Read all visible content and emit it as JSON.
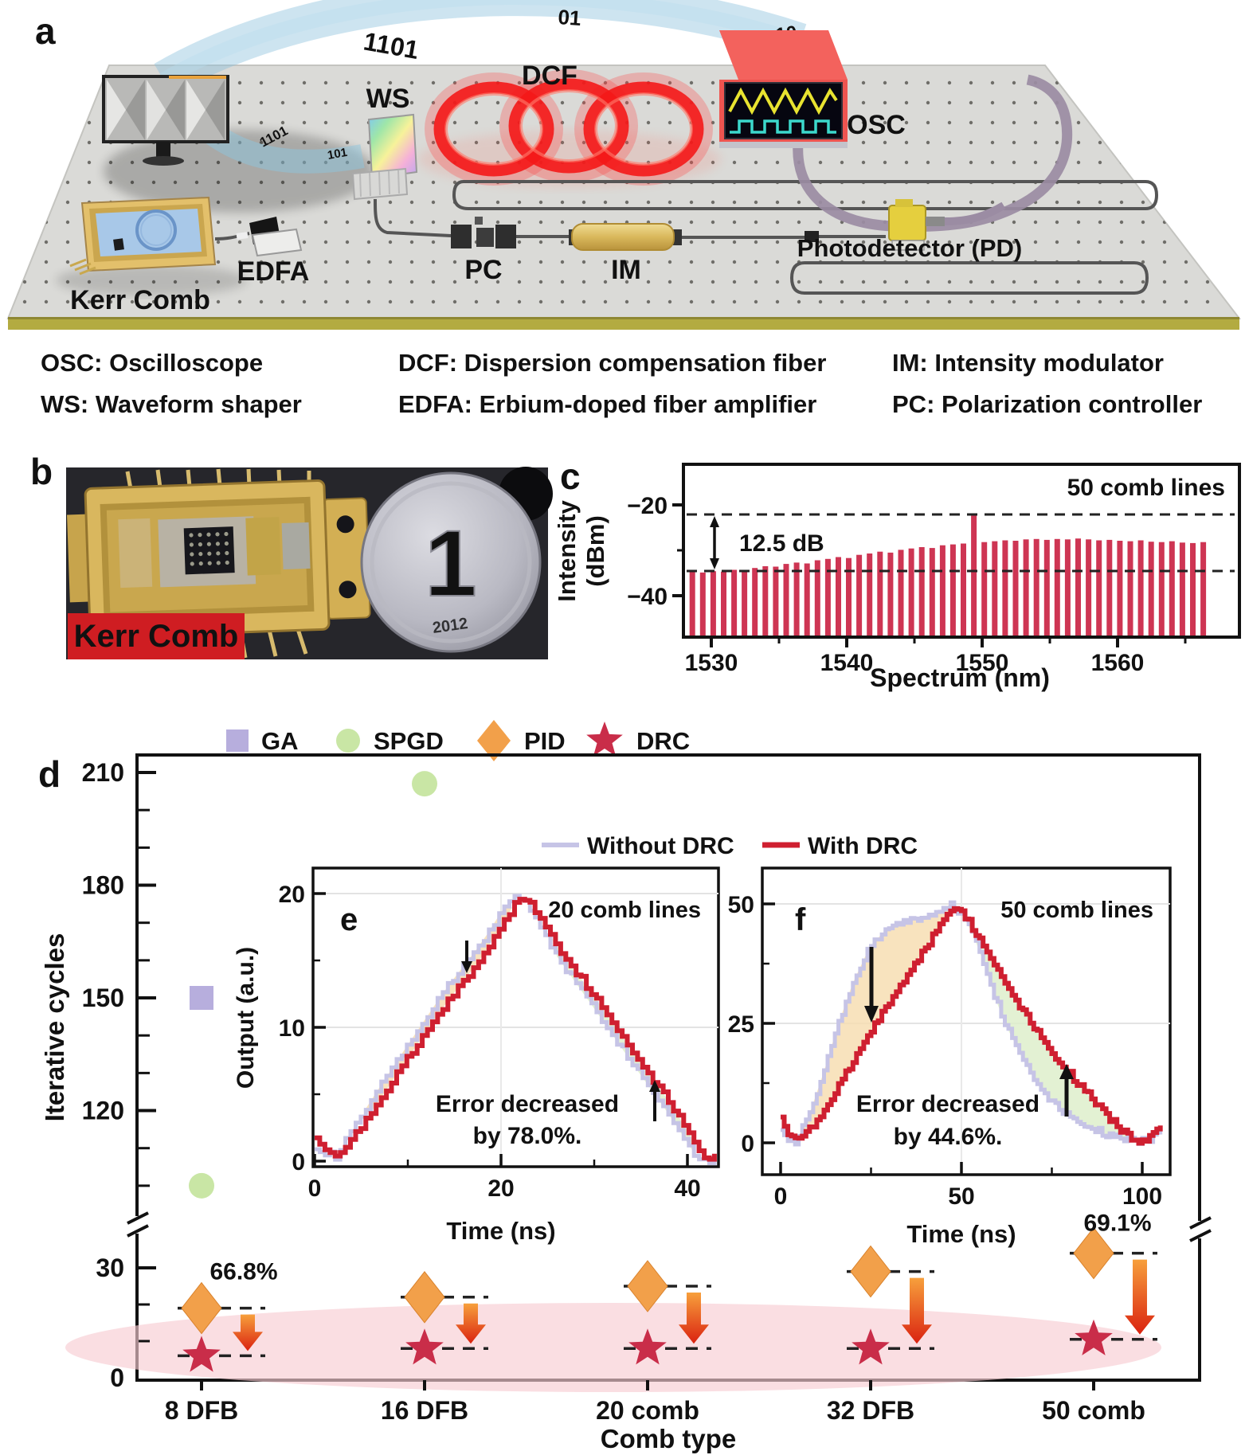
{
  "figure": {
    "letters": {
      "a": "a",
      "b": "b",
      "c": "c",
      "d": "d",
      "e": "e",
      "f": "f"
    }
  },
  "panel_a": {
    "component_labels": {
      "ws": "WS",
      "dcf": "DCF",
      "osc": "OSC",
      "kerr_comb": "Kerr Comb",
      "edfa": "EDFA",
      "pc": "PC",
      "im": "IM",
      "pd": "Photodetector (PD)"
    },
    "binary_digits": [
      "1101",
      "01",
      "10",
      "1101",
      "101"
    ],
    "colors": {
      "dcf_label": "#e03a4e",
      "board": "#dadad7",
      "osc_box": "#f3625d",
      "ring_red": "#f41818"
    }
  },
  "abbreviations": [
    {
      "label": "OSC: Oscilloscope",
      "color": "#111111"
    },
    {
      "label": "DCF: Dispersion compensation fiber",
      "color": "#d43a52"
    },
    {
      "label": "IM: Intensity modulator",
      "color": "#111111"
    },
    {
      "label": "WS: Waveform shaper",
      "color": "#111111"
    },
    {
      "label": "EDFA: Erbium-doped fiber amplifier",
      "color": "#111111"
    },
    {
      "label": "PC: Polarization controller",
      "color": "#111111"
    }
  ],
  "panel_b": {
    "chip_label": "Kerr Comb",
    "coin_numeral": "1",
    "coin_year": "2012"
  },
  "legend_d": [
    {
      "label": "GA",
      "marker": "square",
      "color": "#b7aedd"
    },
    {
      "label": "SPGD",
      "marker": "circle",
      "color": "#c9e6a5"
    },
    {
      "label": "PID",
      "marker": "diamond",
      "color": "#f2a04a"
    },
    {
      "label": "DRC",
      "marker": "star",
      "color": "#c92d49"
    }
  ],
  "inset_legend": {
    "without": "Without DRC",
    "with": "With DRC",
    "without_color": "#c6c4e6",
    "with_color": "#cf1f30"
  },
  "chart_data": [
    {
      "id": "c",
      "type": "bar",
      "xlabel": "Spectrum (nm)",
      "ylabel_line1": "Intensity",
      "ylabel_line2": "(dBm)",
      "annotation": "50 comb lines",
      "gap_label": "12.5 dB",
      "x_start_nm": 1528.6,
      "x_step_nm": 0.77,
      "xticks": [
        1530,
        1540,
        1550,
        1560
      ],
      "xminor": [
        1535,
        1545,
        1555,
        1565
      ],
      "yticks": [
        -20,
        -40
      ],
      "yminor": [
        -30
      ],
      "dashed_levels": [
        -22.3,
        -34.8
      ],
      "bar_color": "#ce3553",
      "values_dbm": [
        -34.8,
        -34.9,
        -34.6,
        -34.7,
        -34.3,
        -34.4,
        -33.9,
        -33.5,
        -33.6,
        -33.0,
        -32.7,
        -32.9,
        -32.2,
        -31.9,
        -31.5,
        -31.7,
        -31.0,
        -30.7,
        -30.3,
        -30.5,
        -29.9,
        -29.6,
        -29.3,
        -29.5,
        -28.9,
        -28.7,
        -28.5,
        -22.3,
        -28.2,
        -28.0,
        -27.8,
        -27.9,
        -27.6,
        -27.5,
        -27.7,
        -27.5,
        -27.6,
        -27.4,
        -27.6,
        -27.8,
        -27.7,
        -27.9,
        -28.0,
        -27.8,
        -28.1,
        -28.2,
        -28.0,
        -28.3,
        -28.4,
        -28.2
      ]
    },
    {
      "id": "d",
      "type": "scatter",
      "ylabel": "Iterative cycles",
      "xlabel": "Comb type",
      "categories": [
        "8 DFB",
        "16 DFB",
        "20 comb",
        "32 DFB",
        "50 comb"
      ],
      "upper_axis_ticks": [
        210,
        180,
        150,
        120
      ],
      "upper_axis_minor": [
        200,
        190,
        170,
        160,
        140,
        130,
        110,
        100
      ],
      "lower_axis_ticks": [
        30,
        0
      ],
      "lower_axis_minor": [
        20,
        10
      ],
      "upper_ylim": [
        95,
        215
      ],
      "lower_ylim": [
        0,
        38
      ],
      "upper_points": [
        {
          "series": "GA",
          "category": "8 DFB",
          "value": 150
        },
        {
          "series": "SPGD",
          "category": "8 DFB",
          "value": 100
        },
        {
          "series": "SPGD",
          "category": "16 DFB",
          "value": 207
        }
      ],
      "pid_values": [
        19,
        22,
        25,
        29,
        34
      ],
      "drc_values": [
        6,
        8,
        8,
        8,
        10.5
      ],
      "reduction_labels": [
        {
          "text": "66.8%",
          "category_index": 0
        },
        {
          "text": "69.1%",
          "category_index": 4
        }
      ],
      "marker_colors": {
        "GA": "#b7aedd",
        "SPGD": "#c9e6a5",
        "PID": "#f2a04a",
        "DRC": "#c92d49"
      }
    },
    {
      "id": "e",
      "type": "line",
      "title": "20 comb lines",
      "xlabel": "Time (ns)",
      "ylabel": "Output (a.u.)",
      "xticks": [
        0,
        20,
        40
      ],
      "xminor": [
        10,
        30
      ],
      "yticks": [
        20,
        10,
        0
      ],
      "yminor": [
        15,
        5
      ],
      "xlim": [
        0,
        43.3
      ],
      "ylim": [
        0,
        22
      ],
      "annotation_line1": "Error decreased",
      "annotation_line2": "by 78.0%.",
      "series": [
        {
          "name": "Without DRC",
          "color": "#c6c4e6",
          "points": [
            [
              0,
              1.0
            ],
            [
              2.2,
              0.3
            ],
            [
              6,
              4.5
            ],
            [
              10,
              8.7
            ],
            [
              14,
              12.8
            ],
            [
              18,
              16.4
            ],
            [
              21.2,
              19.9
            ],
            [
              22.6,
              19.4
            ],
            [
              26,
              15.3
            ],
            [
              30,
              11.4
            ],
            [
              34,
              7.4
            ],
            [
              38,
              3.5
            ],
            [
              41.2,
              0.1
            ],
            [
              42.6,
              0.0
            ],
            [
              43.3,
              0.85
            ]
          ]
        },
        {
          "name": "With DRC",
          "color": "#cf1f30",
          "points": [
            [
              0,
              1.6
            ],
            [
              2.5,
              0.15
            ],
            [
              6,
              3.6
            ],
            [
              10,
              7.7
            ],
            [
              14,
              11.7
            ],
            [
              18,
              15.3
            ],
            [
              21.6,
              19.4
            ],
            [
              22.4,
              19.9
            ],
            [
              26,
              16.1
            ],
            [
              30,
              12.3
            ],
            [
              34,
              8.3
            ],
            [
              38,
              4.5
            ],
            [
              41.6,
              0.5
            ],
            [
              42.6,
              0.15
            ],
            [
              43.3,
              1.3
            ]
          ]
        }
      ],
      "shade_rise": [
        5.5,
        21.2
      ],
      "shade_fall": [
        25.5,
        41.0
      ],
      "shade_rise_color": "#f6dcae",
      "shade_fall_color": "#dcedc8"
    },
    {
      "id": "f",
      "type": "line",
      "title": "50 comb lines",
      "xlabel": "Time (ns)",
      "ylabel": "",
      "xticks": [
        0,
        50,
        100
      ],
      "xminor": [
        25,
        75
      ],
      "yticks": [
        50,
        25,
        0
      ],
      "yminor": [
        37.5,
        12.5
      ],
      "xlim": [
        0,
        105
      ],
      "ylim": [
        0,
        55
      ],
      "annotation_line1": "Error decreased",
      "annotation_line2": "by 44.6%.",
      "series": [
        {
          "name": "Without DRC",
          "color": "#c6c4e6",
          "points": [
            [
              0,
              3
            ],
            [
              2,
              1
            ],
            [
              4,
              0.2
            ],
            [
              8,
              6
            ],
            [
              12,
              15
            ],
            [
              16,
              25
            ],
            [
              20,
              33.5
            ],
            [
              24,
              40
            ],
            [
              28,
              43.8
            ],
            [
              32,
              45.8
            ],
            [
              36,
              46.6
            ],
            [
              40,
              47.2
            ],
            [
              44,
              48.4
            ],
            [
              47,
              50
            ],
            [
              50,
              48
            ],
            [
              53,
              44
            ],
            [
              56,
              38
            ],
            [
              59,
              31
            ],
            [
              62,
              25
            ],
            [
              66,
              19
            ],
            [
              70,
              13.5
            ],
            [
              74,
              9.5
            ],
            [
              78,
              6.6
            ],
            [
              82,
              4.6
            ],
            [
              86,
              3.2
            ],
            [
              90,
              1.8
            ],
            [
              94,
              0.8
            ],
            [
              98,
              0.3
            ],
            [
              101,
              0.4
            ],
            [
              105,
              2.2
            ]
          ]
        },
        {
          "name": "With DRC",
          "color": "#cf1f30",
          "points": [
            [
              0,
              5
            ],
            [
              2,
              2
            ],
            [
              5,
              0.3
            ],
            [
              10,
              4.5
            ],
            [
              15,
              10.5
            ],
            [
              20,
              17
            ],
            [
              25,
              23.5
            ],
            [
              30,
              29.5
            ],
            [
              35,
              35
            ],
            [
              40,
              41
            ],
            [
              45,
              46.5
            ],
            [
              48,
              49.6
            ],
            [
              50,
              48.8
            ],
            [
              53,
              45
            ],
            [
              57,
              40
            ],
            [
              61,
              35
            ],
            [
              65,
              30
            ],
            [
              69,
              25.5
            ],
            [
              73,
              21
            ],
            [
              77,
              17
            ],
            [
              81,
              13.5
            ],
            [
              85,
              10
            ],
            [
              89,
              6.5
            ],
            [
              93,
              3.5
            ],
            [
              97,
              1
            ],
            [
              100,
              0.3
            ],
            [
              103,
              1.8
            ],
            [
              105,
              3.6
            ]
          ]
        }
      ],
      "shade_rise": [
        5.5,
        46.5
      ],
      "shade_fall": [
        51.5,
        97.5
      ],
      "shade_rise_color": "#f6dcae",
      "shade_fall_color": "#dcedc8"
    }
  ]
}
